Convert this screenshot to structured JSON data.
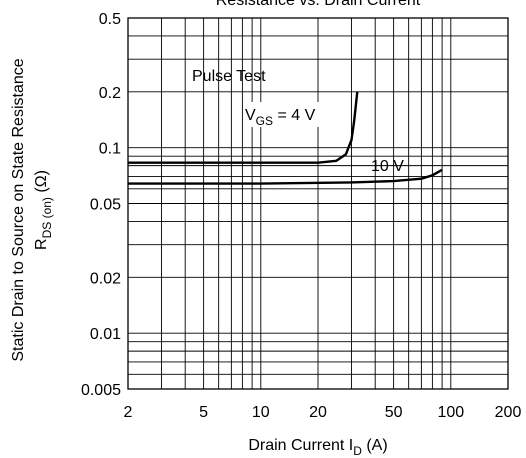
{
  "chart_data": {
    "type": "line",
    "title": "Resistance vs. Drain Current",
    "xlabel": {
      "main": "Drain Current  I",
      "sub": "D",
      "unit": "(A)"
    },
    "ylabel": {
      "line1": "Static Drain to Source on State Resistance",
      "line2_main": "R",
      "line2_sub": "DS (on)",
      "line2_unit": "(Ω)"
    },
    "x_scale": "log",
    "y_scale": "log",
    "xlim": [
      2,
      200
    ],
    "ylim": [
      0.005,
      0.5
    ],
    "x_ticks": [
      {
        "value": 2,
        "label": "2"
      },
      {
        "value": 5,
        "label": "5"
      },
      {
        "value": 10,
        "label": "10"
      },
      {
        "value": 20,
        "label": "20"
      },
      {
        "value": 50,
        "label": "50"
      },
      {
        "value": 100,
        "label": "100"
      },
      {
        "value": 200,
        "label": "200"
      }
    ],
    "y_ticks": [
      {
        "value": 0.005,
        "label": "0.005"
      },
      {
        "value": 0.01,
        "label": "0.01"
      },
      {
        "value": 0.02,
        "label": "0.02"
      },
      {
        "value": 0.05,
        "label": "0.05"
      },
      {
        "value": 0.1,
        "label": "0.1"
      },
      {
        "value": 0.2,
        "label": "0.2"
      },
      {
        "value": 0.5,
        "label": "0.5"
      }
    ],
    "grid": true,
    "annotations": [
      {
        "text": "Pulse Test"
      },
      {
        "text_main": "V",
        "text_sub": "GS",
        "text_rest": " = 4 V"
      },
      {
        "text": "10 V"
      }
    ],
    "series": [
      {
        "label": "4 V",
        "x": [
          2,
          10,
          20,
          25,
          28,
          30,
          31,
          32.2
        ],
        "y": [
          0.083,
          0.083,
          0.083,
          0.085,
          0.092,
          0.11,
          0.14,
          0.2
        ]
      },
      {
        "label": "10 V",
        "x": [
          2,
          10,
          30,
          50,
          70,
          80,
          90
        ],
        "y": [
          0.064,
          0.064,
          0.065,
          0.066,
          0.068,
          0.071,
          0.076
        ]
      }
    ]
  }
}
